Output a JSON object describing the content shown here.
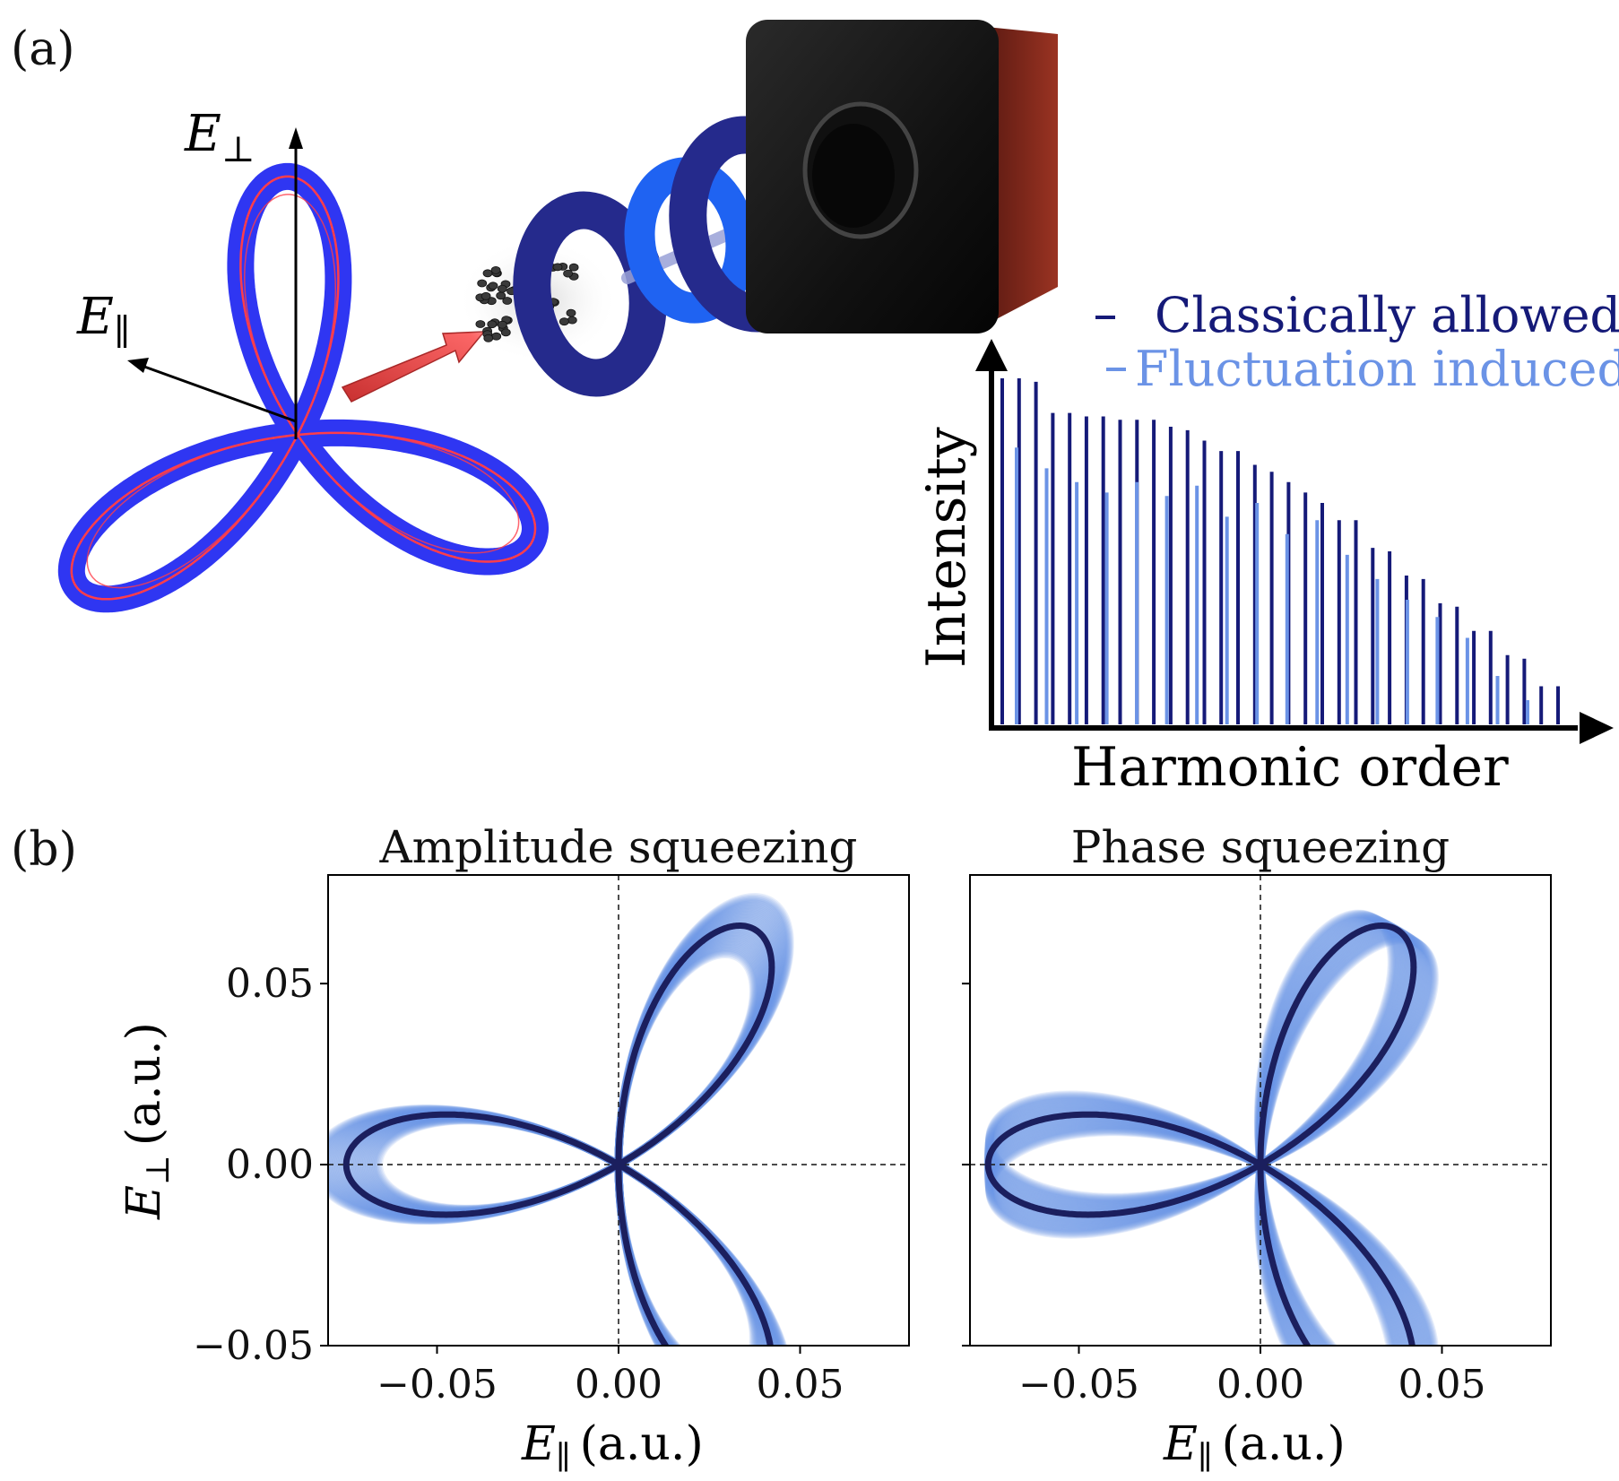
{
  "panel_a": {
    "label": "(a)",
    "axis_perp": "E",
    "axis_perp_sub": "⊥",
    "axis_par": "E",
    "axis_par_sub": "∥",
    "colors": {
      "lobe": "#2f36f2",
      "lobe_edge": "#ff3d4a",
      "beam": "#e54848",
      "ring_dark": "#252a8c",
      "ring_light": "#1f63f2",
      "detector": "#1a1a1a",
      "detector_side": "#8a2a1e"
    }
  },
  "spectrum": {
    "legend": [
      "Classically allowed",
      "Fluctuation induced"
    ],
    "xlabel": "Harmonic order",
    "ylabel": "Intensity",
    "colors": {
      "classical": "#151a78",
      "fluct": "#6b93e6"
    }
  },
  "panel_b": {
    "label": "(b)",
    "ylabel_main": "E",
    "ylabel_sub": "⊥",
    "ylabel_unit": "(a.u.)",
    "xlabel_main": "E",
    "xlabel_sub": "∥",
    "xlabel_unit": "(a.u.)"
  },
  "chart_data": [
    {
      "type": "bar",
      "title": "",
      "xlabel": "Harmonic order",
      "ylabel": "Intensity",
      "series": [
        {
          "name": "Classically allowed",
          "values": [
            1.0,
            1.0,
            0.99,
            0.9,
            0.9,
            0.89,
            0.89,
            0.88,
            0.88,
            0.88,
            0.86,
            0.85,
            0.82,
            0.79,
            0.79,
            0.75,
            0.73,
            0.7,
            0.67,
            0.64,
            0.59,
            0.59,
            0.51,
            0.5,
            0.43,
            0.42,
            0.35,
            0.34,
            0.27,
            0.27,
            0.2,
            0.19,
            0.11,
            0.11
          ]
        },
        {
          "name": "Fluctuation induced",
          "values": [
            0.8,
            0.74,
            0.7,
            0.67,
            0.7,
            0.66,
            0.69,
            0.6,
            0.64,
            0.55,
            0.59,
            0.49,
            0.42,
            0.36,
            0.31,
            0.25,
            0.14,
            0.07
          ]
        }
      ]
    },
    {
      "type": "line",
      "title": "Amplitude squeezing",
      "xlabel": "E∥ (a.u.)",
      "ylabel": "E⊥ (a.u.)",
      "xlim": [
        -0.08,
        0.08
      ],
      "ylim": [
        -0.05,
        0.08
      ],
      "xticks": [
        "−0.05",
        "0.00",
        "0.05"
      ],
      "yticks": [
        "−0.05",
        "0.00",
        "0.05"
      ],
      "curve": "trefoil",
      "amplitude": 0.075,
      "band": "amplitude"
    },
    {
      "type": "line",
      "title": "Phase squeezing",
      "xlabel": "E∥ (a.u.)",
      "ylabel": "",
      "xlim": [
        -0.08,
        0.08
      ],
      "ylim": [
        -0.05,
        0.08
      ],
      "xticks": [
        "−0.05",
        "0.00",
        "0.05"
      ],
      "curve": "trefoil",
      "amplitude": 0.075,
      "band": "phase"
    }
  ]
}
